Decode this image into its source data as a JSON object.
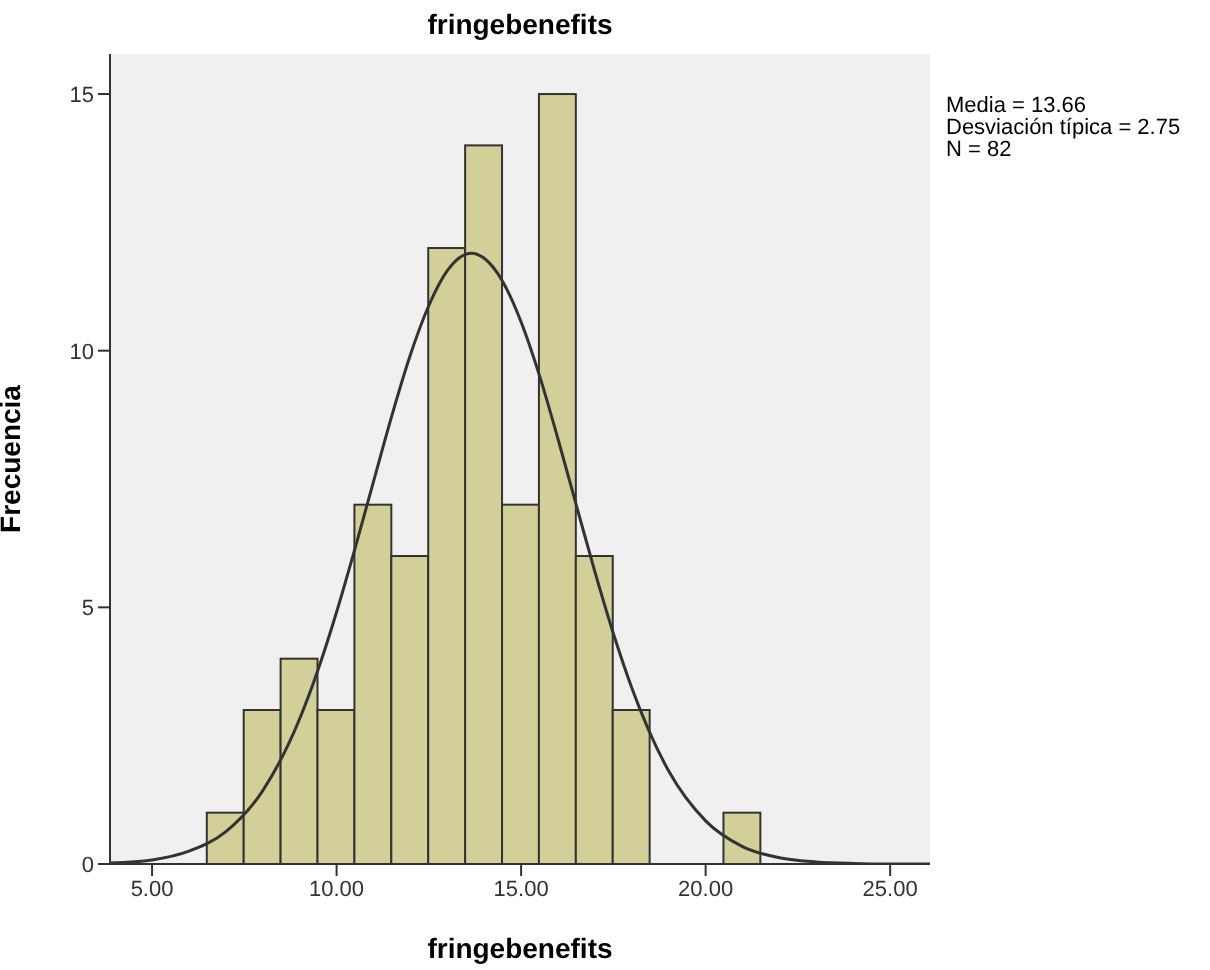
{
  "chart_data": {
    "type": "histogram",
    "title": "fringebenefits",
    "xlabel": "fringebenefits",
    "ylabel": "Frecuencia",
    "annotations": [
      "Media = 13.66",
      "Desviación típica = 2.75",
      "N = 82"
    ],
    "series": [
      {
        "type": "histogram",
        "color": "#d3cf98",
        "bins": [
          6.5,
          7.5,
          8.5,
          9.5,
          10.5,
          11.5,
          12.5,
          13.5,
          14.5,
          15.5,
          16.5,
          17.5,
          18.5,
          19.5,
          20.5,
          21.5
        ],
        "values": [
          1,
          3,
          4,
          3,
          7,
          6,
          12,
          14,
          7,
          15,
          6,
          3,
          0,
          0,
          1
        ]
      },
      {
        "type": "line",
        "color": "#333333",
        "x": [
          3.86,
          5,
          6,
          7,
          8,
          9,
          9.5,
          10,
          10.5,
          11,
          11.5,
          12,
          12.5,
          13,
          13.66,
          14,
          14.5,
          15,
          15.5,
          16,
          16.5,
          17,
          17.5,
          18,
          19,
          20,
          21,
          22,
          23,
          24,
          25,
          26.08
        ],
        "values": [
          0.02,
          0.08,
          0.25,
          0.63,
          1.43,
          2.83,
          3.79,
          4.91,
          6.15,
          7.45,
          8.74,
          9.92,
          10.88,
          11.56,
          11.9,
          11.8,
          11.35,
          10.56,
          9.51,
          8.28,
          6.98,
          5.69,
          4.49,
          3.43,
          1.81,
          0.84,
          0.34,
          0.12,
          0.04,
          0.01,
          0,
          0
        ]
      }
    ],
    "xlim": [
      3.86,
      26.08
    ],
    "ylim": [
      0,
      15.78
    ],
    "xticks": [
      {
        "value": 5,
        "label": "5.00"
      },
      {
        "value": 10,
        "label": "10.00"
      },
      {
        "value": 15,
        "label": "15.00"
      },
      {
        "value": 20,
        "label": "20.00"
      },
      {
        "value": 25,
        "label": "25.00"
      }
    ],
    "yticks": [
      0,
      5,
      10,
      15
    ]
  }
}
